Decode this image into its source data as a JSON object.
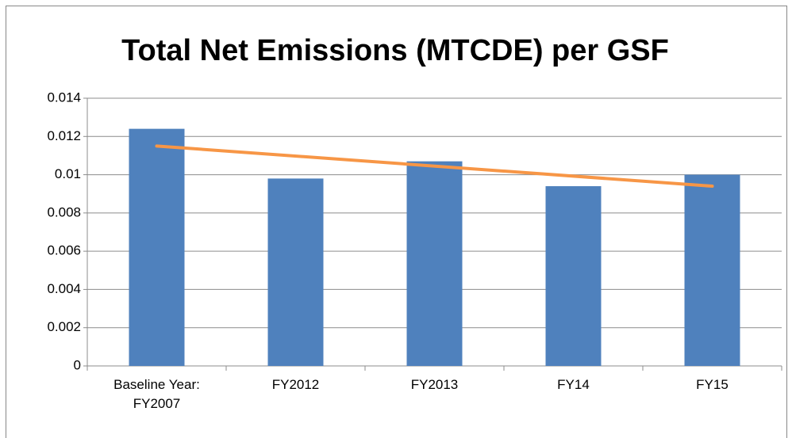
{
  "chart_data": {
    "type": "bar",
    "title": "Total Net Emissions (MTCDE) per GSF",
    "categories": [
      "Baseline Year: FY2007",
      "FY2012",
      "FY2013",
      "FY14",
      "FY15"
    ],
    "values": [
      0.0124,
      0.0098,
      0.0107,
      0.0094,
      0.01
    ],
    "color": "#4f81bd",
    "trendline": {
      "values": [
        0.0115,
        0.0094
      ],
      "color": "#f79646"
    },
    "ylim": [
      0,
      0.014
    ],
    "yticks": [
      0,
      0.002,
      0.004,
      0.006,
      0.008,
      0.01,
      0.012,
      0.014
    ],
    "grid": true
  }
}
